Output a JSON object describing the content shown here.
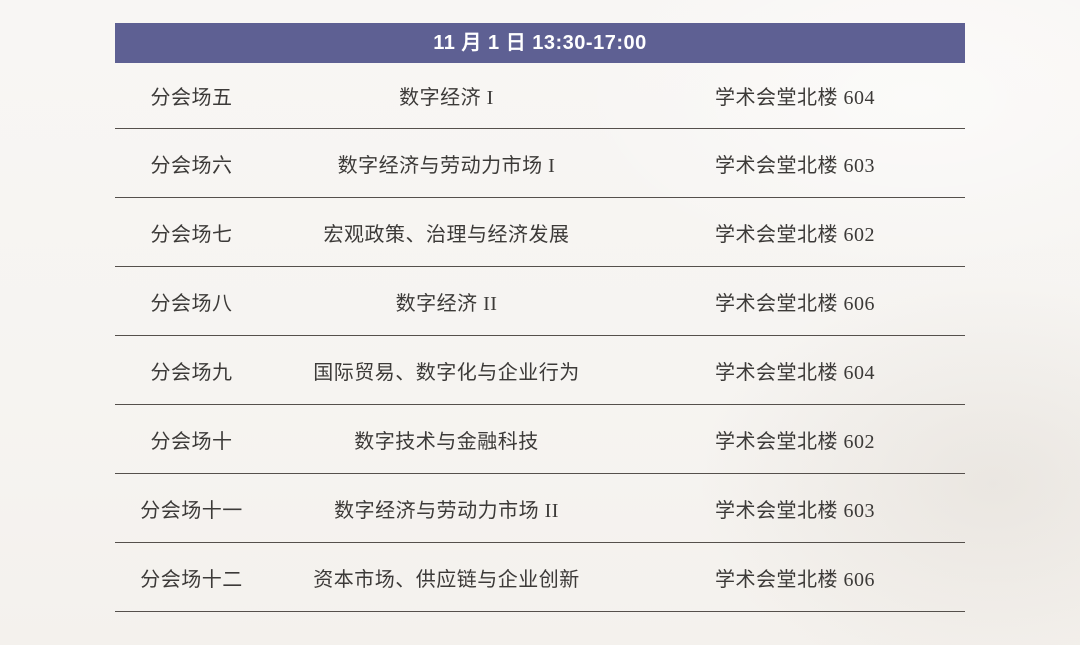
{
  "page": {
    "background_color": "#f6f4f1"
  },
  "schedule": {
    "header": {
      "label": "11 月 1 日 13:30-17:00",
      "background_color": "#5e6093",
      "text_color": "#ffffff"
    },
    "divider_color": "#55504c",
    "text_color": "#3c3a38",
    "columns": [
      "session",
      "topic",
      "location"
    ],
    "rows": [
      {
        "session": "分会场五",
        "topic": "数字经济 I",
        "location": "学术会堂北楼 604"
      },
      {
        "session": "分会场六",
        "topic": "数字经济与劳动力市场 I",
        "location": "学术会堂北楼 603"
      },
      {
        "session": "分会场七",
        "topic": "宏观政策、治理与经济发展",
        "location": "学术会堂北楼 602"
      },
      {
        "session": "分会场八",
        "topic": "数字经济 II",
        "location": "学术会堂北楼 606"
      },
      {
        "session": "分会场九",
        "topic": "国际贸易、数字化与企业行为",
        "location": "学术会堂北楼 604"
      },
      {
        "session": "分会场十",
        "topic": "数字技术与金融科技",
        "location": "学术会堂北楼 602"
      },
      {
        "session": "分会场十一",
        "topic": "数字经济与劳动力市场 II",
        "location": "学术会堂北楼 603"
      },
      {
        "session": "分会场十二",
        "topic": "资本市场、供应链与企业创新",
        "location": "学术会堂北楼 606"
      }
    ]
  }
}
